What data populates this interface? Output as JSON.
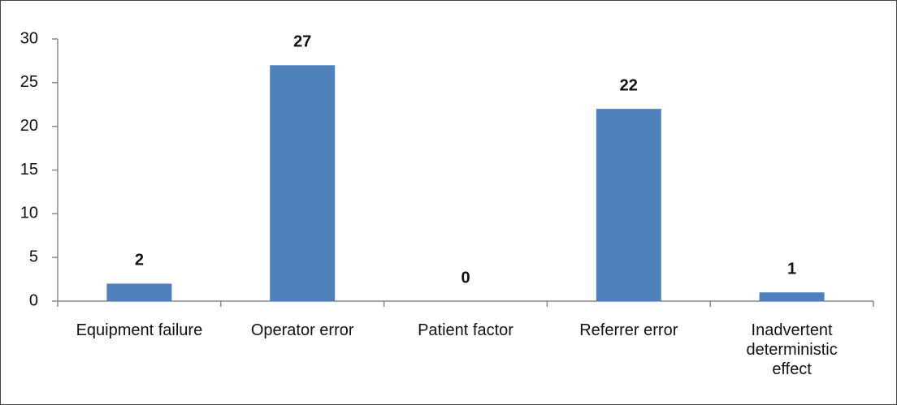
{
  "chart_data": {
    "type": "bar",
    "categories": [
      "Equipment failure",
      "Operator error",
      "Patient factor",
      "Referrer error",
      "Inadvertent deterministic effect"
    ],
    "values": [
      2,
      27,
      0,
      22,
      1
    ],
    "color": "#4f81bd",
    "ylim": [
      0,
      30
    ],
    "yticks": [
      0,
      5,
      10,
      15,
      20,
      25,
      30
    ],
    "grid": false
  }
}
